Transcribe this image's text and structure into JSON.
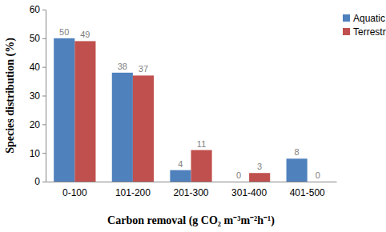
{
  "chart_data": {
    "type": "bar",
    "x_label": "Carbon removal (g CO₂ m⁻³m⁻²h⁻¹)",
    "y_label": "Species distribution (%)",
    "categories": [
      "0-100",
      "101-200",
      "201-300",
      "301-400",
      "401-500"
    ],
    "series": [
      {
        "name": "Aquatic",
        "color": "#4f81bd",
        "values": [
          50,
          38,
          4,
          0,
          8
        ]
      },
      {
        "name": "Terrestrial",
        "color": "#c0504d",
        "values": [
          49,
          37,
          11,
          3,
          0
        ]
      }
    ],
    "ylim": [
      0,
      60
    ],
    "yticks": [
      0,
      10,
      20,
      30,
      40,
      50,
      60
    ],
    "grid": false,
    "legend": "right",
    "data_labels": true
  }
}
